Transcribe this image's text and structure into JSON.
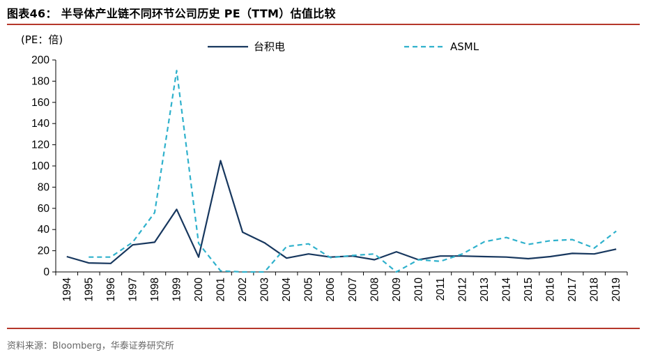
{
  "figure": {
    "title": "图表46：  半导体产业链不同环节公司历史 PE（TTM）估值比较",
    "source": "资料来源：Bloomberg，华泰证券研究所"
  },
  "chart_data": {
    "type": "line",
    "title": "",
    "xlabel": "",
    "ylabel": "(PE：倍)",
    "ylim": [
      0,
      200
    ],
    "yticks": [
      0,
      20,
      40,
      60,
      80,
      100,
      120,
      140,
      160,
      180,
      200
    ],
    "grid": false,
    "legend_position": "top",
    "x": [
      "1994",
      "1995",
      "1996",
      "1997",
      "1998",
      "1999",
      "2000",
      "2001",
      "2002",
      "2003",
      "2004",
      "2005",
      "2006",
      "2007",
      "2008",
      "2009",
      "2010",
      "2011",
      "2012",
      "2013",
      "2014",
      "2015",
      "2016",
      "2017",
      "2018",
      "2019"
    ],
    "series": [
      {
        "name": "台积电",
        "color": "#17375e",
        "style": "solid",
        "values": [
          14.5,
          8.5,
          8,
          25.5,
          28,
          59,
          14,
          105,
          37.5,
          27.5,
          13,
          17,
          14,
          15,
          11.5,
          19,
          11.5,
          15,
          15,
          14.5,
          14,
          12.5,
          14.5,
          17.5,
          17,
          21.5
        ]
      },
      {
        "name": "ASML",
        "color": "#2fb1cc",
        "style": "dashed",
        "values": [
          null,
          14,
          14,
          28,
          56,
          190,
          27,
          1,
          0,
          0,
          24,
          26.5,
          13.5,
          15.5,
          17,
          0,
          11.5,
          10,
          17,
          28.5,
          32.5,
          26,
          29.5,
          30.5,
          22.5,
          38.5
        ]
      }
    ]
  }
}
